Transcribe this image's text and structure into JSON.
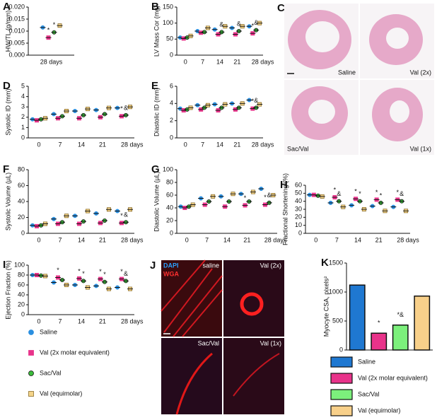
{
  "legend": {
    "items": [
      {
        "name": "Saline",
        "color": "#2a8fe0",
        "stroke": "#2a8fe0",
        "marker": "circle"
      },
      {
        "name": "Val (2x molar equivalent)",
        "color": "#e8338a",
        "stroke": "#e8338a",
        "marker": "square"
      },
      {
        "name": "Sac/Val",
        "color": "#3cbc3c",
        "stroke": "#111111",
        "marker": "circle"
      },
      {
        "name": "Val (equimolar)",
        "color": "#f4d48a",
        "stroke": "#8b6d2a",
        "marker": "square"
      }
    ]
  },
  "images": {
    "C": {
      "panel": "C",
      "tiles": [
        "Saline",
        "Val (2x)",
        "Sac/Val",
        "Val (1x)"
      ]
    },
    "J": {
      "panel": "J",
      "stains": [
        "DAPI",
        "WGA"
      ],
      "tiles": [
        "saline",
        "Val (2x)",
        "Sac/Val",
        "Val (1x)"
      ]
    }
  },
  "chart_data": [
    {
      "type": "dot",
      "panel": "A",
      "ylabel": "HW/TL (g/mm)",
      "categories": [
        "28 days"
      ],
      "ylim": [
        0,
        0.02
      ],
      "yticks": [
        {
          "value": 0,
          "label": "0.000"
        },
        {
          "value": 0.005,
          "label": "0.005"
        },
        {
          "value": 0.01,
          "label": "0.010"
        },
        {
          "value": 0.015,
          "label": "0.015"
        },
        {
          "value": 0.02,
          "label": "0.020"
        }
      ],
      "series": [
        {
          "values": [
            0.0115
          ],
          "sig": [
            null
          ]
        },
        {
          "values": [
            0.0073
          ],
          "sig": [
            "*"
          ]
        },
        {
          "values": [
            0.0095
          ],
          "sig": [
            "*"
          ]
        },
        {
          "values": [
            0.0123
          ],
          "sig": [
            null
          ]
        }
      ]
    },
    {
      "type": "dot",
      "panel": "B",
      "ylabel": "LV Mass Cor (mg)",
      "categories": [
        "0",
        "7",
        "14",
        "21",
        "28 days"
      ],
      "ylim": [
        0,
        150
      ],
      "yticks": [
        0,
        50,
        100,
        150
      ],
      "series": [
        {
          "values": [
            55,
            75,
            80,
            85,
            90
          ],
          "sig": [
            null,
            null,
            null,
            null,
            null
          ]
        },
        {
          "values": [
            52,
            70,
            65,
            65,
            68
          ],
          "sig": [
            null,
            null,
            null,
            null,
            "*"
          ]
        },
        {
          "values": [
            55,
            72,
            72,
            75,
            78
          ],
          "sig": [
            null,
            null,
            "&",
            "&",
            "&"
          ]
        },
        {
          "values": [
            60,
            85,
            90,
            90,
            100
          ],
          "sig": [
            null,
            null,
            null,
            null,
            null
          ]
        }
      ]
    },
    {
      "type": "dot",
      "panel": "D",
      "ylabel": "Systolic ID (mm)",
      "categories": [
        "0",
        "7",
        "14",
        "21",
        "28 days"
      ],
      "ylim": [
        0,
        5
      ],
      "yticks": [
        0,
        1,
        2,
        3,
        4,
        5
      ],
      "series": [
        {
          "values": [
            1.8,
            2.3,
            2.6,
            2.7,
            2.9
          ],
          "sig": [
            null,
            null,
            null,
            null,
            null
          ]
        },
        {
          "values": [
            1.7,
            1.9,
            1.9,
            2.0,
            2.1
          ],
          "sig": [
            null,
            null,
            null,
            null,
            "*"
          ]
        },
        {
          "values": [
            1.8,
            2.1,
            2.2,
            2.3,
            2.2
          ],
          "sig": [
            null,
            null,
            null,
            null,
            "&"
          ]
        },
        {
          "values": [
            1.9,
            2.6,
            2.8,
            2.9,
            3.0
          ],
          "sig": [
            null,
            null,
            null,
            null,
            null
          ]
        }
      ]
    },
    {
      "type": "dot",
      "panel": "E",
      "ylabel": "Diastolic ID (mm)",
      "categories": [
        "0",
        "7",
        "14",
        "21",
        "28 days"
      ],
      "ylim": [
        0,
        6
      ],
      "yticks": [
        0,
        2,
        4,
        6
      ],
      "series": [
        {
          "values": [
            3.4,
            3.8,
            3.9,
            4.0,
            4.4
          ],
          "sig": [
            null,
            null,
            null,
            null,
            null
          ]
        },
        {
          "values": [
            3.2,
            3.3,
            3.2,
            3.3,
            3.4
          ],
          "sig": [
            null,
            null,
            null,
            null,
            "*"
          ]
        },
        {
          "values": [
            3.3,
            3.5,
            3.5,
            3.5,
            3.5
          ],
          "sig": [
            null,
            null,
            null,
            null,
            "&"
          ]
        },
        {
          "values": [
            3.5,
            3.8,
            3.9,
            4.0,
            3.9
          ],
          "sig": [
            null,
            null,
            null,
            null,
            null
          ]
        }
      ]
    },
    {
      "type": "dot",
      "panel": "F",
      "ylabel": "Systolic Volume (µL)",
      "categories": [
        "0",
        "7",
        "14",
        "21",
        "28 days"
      ],
      "ylim": [
        0,
        80
      ],
      "yticks": [
        0,
        20,
        40,
        60,
        80
      ],
      "series": [
        {
          "values": [
            10,
            18,
            22,
            25,
            28
          ],
          "sig": [
            null,
            null,
            null,
            null,
            null
          ]
        },
        {
          "values": [
            9,
            12,
            12,
            13,
            13
          ],
          "sig": [
            null,
            null,
            null,
            null,
            "*"
          ]
        },
        {
          "values": [
            10,
            14,
            15,
            16,
            14
          ],
          "sig": [
            null,
            null,
            null,
            null,
            "&"
          ]
        },
        {
          "values": [
            12,
            22,
            28,
            30,
            30
          ],
          "sig": [
            null,
            null,
            null,
            null,
            null
          ]
        }
      ]
    },
    {
      "type": "dot",
      "panel": "G",
      "ylabel": "Diastolic Volume (µL)",
      "categories": [
        "0",
        "7",
        "14",
        "21",
        "28 days"
      ],
      "ylim": [
        0,
        100
      ],
      "yticks": [
        0,
        20,
        40,
        60,
        80,
        100
      ],
      "series": [
        {
          "values": [
            42,
            55,
            58,
            62,
            70
          ],
          "sig": [
            null,
            null,
            null,
            null,
            null
          ]
        },
        {
          "values": [
            40,
            45,
            42,
            44,
            45
          ],
          "sig": [
            null,
            null,
            null,
            "*",
            "*"
          ]
        },
        {
          "values": [
            42,
            50,
            50,
            50,
            48
          ],
          "sig": [
            null,
            null,
            null,
            null,
            "&"
          ]
        },
        {
          "values": [
            45,
            58,
            62,
            65,
            60
          ],
          "sig": [
            null,
            null,
            null,
            null,
            null
          ]
        }
      ]
    },
    {
      "type": "dot",
      "panel": "H",
      "ylabel": "Fractional Shortening (%)",
      "categories": [
        "0",
        "7",
        "14",
        "21",
        "28 days"
      ],
      "ylim": [
        0,
        60
      ],
      "yticks": [
        0,
        10,
        20,
        30,
        40,
        50,
        60
      ],
      "series": [
        {
          "values": [
            48,
            38,
            35,
            34,
            33
          ],
          "sig": [
            null,
            null,
            null,
            null,
            null
          ]
        },
        {
          "values": [
            48,
            45,
            43,
            42,
            42
          ],
          "sig": [
            null,
            "*",
            "*",
            "*",
            "*"
          ]
        },
        {
          "values": [
            47,
            40,
            40,
            38,
            40
          ],
          "sig": [
            null,
            "&",
            "*",
            "*",
            "&"
          ]
        },
        {
          "values": [
            46,
            33,
            30,
            28,
            28
          ],
          "sig": [
            null,
            null,
            null,
            null,
            null
          ]
        }
      ]
    },
    {
      "type": "dot",
      "panel": "I",
      "ylabel": "Ejection Fraction (%)",
      "categories": [
        "0",
        "7",
        "14",
        "21",
        "28 days"
      ],
      "ylim": [
        0,
        100
      ],
      "yticks": [
        0,
        20,
        40,
        60,
        80,
        100
      ],
      "series": [
        {
          "values": [
            80,
            65,
            60,
            58,
            55
          ],
          "sig": [
            null,
            null,
            null,
            null,
            null
          ]
        },
        {
          "values": [
            80,
            75,
            73,
            72,
            72
          ],
          "sig": [
            null,
            "*",
            "*",
            "*",
            "*"
          ]
        },
        {
          "values": [
            79,
            70,
            68,
            66,
            68
          ],
          "sig": [
            null,
            null,
            "*",
            "*",
            "&"
          ]
        },
        {
          "values": [
            78,
            60,
            55,
            52,
            52
          ],
          "sig": [
            null,
            null,
            null,
            null,
            null
          ]
        }
      ]
    },
    {
      "type": "bar",
      "panel": "K",
      "ylabel": "Myocyte CSA, pixels²",
      "ylim": [
        0,
        1500
      ],
      "yticks": [
        0,
        500,
        1000,
        1500
      ],
      "series": [
        {
          "name": "Saline",
          "color": "#1f78d1",
          "values": [
            1120
          ],
          "sig": [
            null
          ]
        },
        {
          "name": "Val (2x molar equivalent)",
          "color": "#e8338a",
          "values": [
            290
          ],
          "sig": [
            "*"
          ]
        },
        {
          "name": "Sac/Val",
          "color": "#7cf07c",
          "values": [
            430
          ],
          "sig": [
            "*&"
          ]
        },
        {
          "name": "Val (equimolar)",
          "color": "#f8d08a",
          "values": [
            930
          ],
          "sig": [
            null
          ]
        }
      ]
    }
  ]
}
